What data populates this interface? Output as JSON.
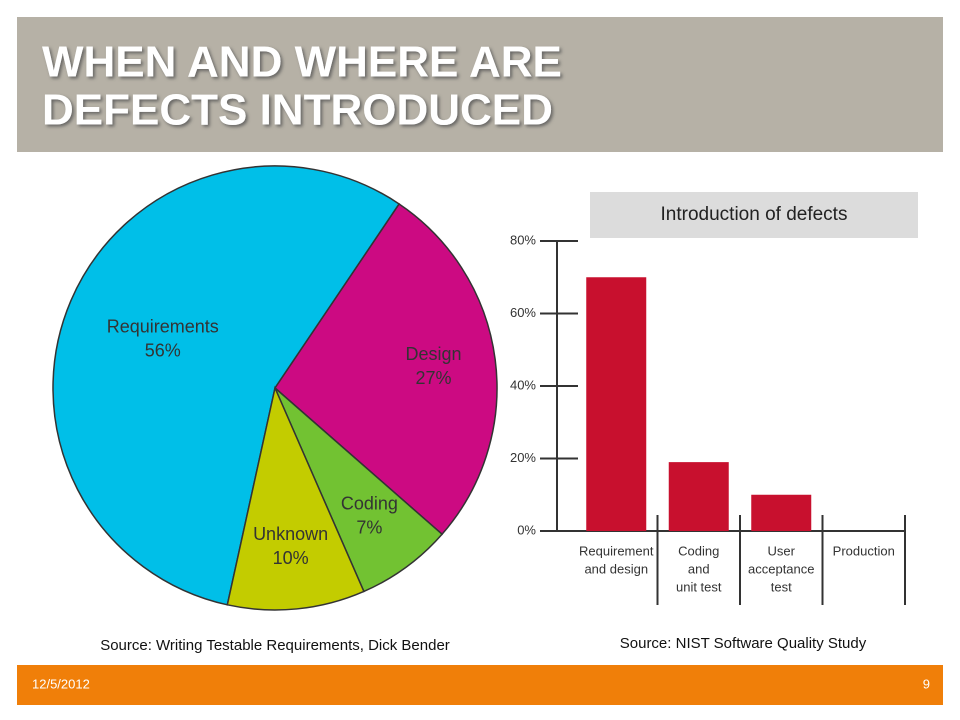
{
  "title": [
    "WHEN AND WHERE ARE",
    "DEFECTS INTRODUCED"
  ],
  "chart_data": [
    {
      "type": "pie",
      "categories": [
        "Requirements",
        "Design",
        "Coding",
        "Unknown"
      ],
      "values": [
        56,
        27,
        7,
        10
      ],
      "value_labels": [
        "56%",
        "27%",
        "7%",
        "10%"
      ],
      "colors": [
        "#00bfe8",
        "#cc0a82",
        "#72c232",
        "#c3cc00"
      ],
      "caption": "Source: Writing Testable Requirements, Dick Bender"
    },
    {
      "type": "bar",
      "title": "Introduction of defects",
      "categories": [
        [
          "Requirement",
          "and design"
        ],
        [
          "Coding",
          "and",
          "unit test"
        ],
        [
          "User",
          "acceptance",
          "test"
        ],
        [
          "Production"
        ]
      ],
      "values": [
        70,
        19,
        10,
        0
      ],
      "color": "#c8102e",
      "ylim": [
        0,
        80
      ],
      "yticks": [
        {
          "value": 0,
          "label": "0%"
        },
        {
          "value": 20,
          "label": "20%"
        },
        {
          "value": 40,
          "label": "40%"
        },
        {
          "value": 60,
          "label": "60%"
        },
        {
          "value": 80,
          "label": "80%"
        }
      ],
      "caption": "Source: NIST Software Quality Study"
    }
  ],
  "footer": {
    "date": "12/5/2012",
    "page": "9"
  }
}
